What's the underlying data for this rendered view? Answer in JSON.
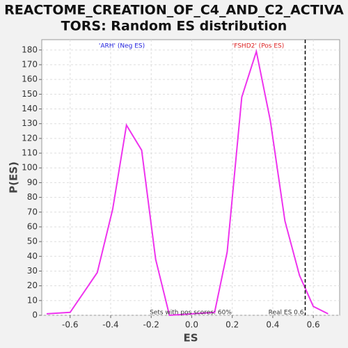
{
  "chart_data": {
    "type": "line",
    "title": [
      "REACTOME_CREATION_OF_C4_AND_C2_ACTIVA",
      "TORS: Random ES distribution"
    ],
    "xlabel": "ES",
    "ylabel": "P(ES)",
    "x": [
      -0.716,
      -0.6,
      -0.466,
      -0.39,
      -0.322,
      -0.247,
      -0.178,
      -0.11,
      0.113,
      0.175,
      0.247,
      0.319,
      0.388,
      0.46,
      0.532,
      0.6,
      0.673
    ],
    "series": [
      {
        "name": "P(ES)",
        "color": "#ee33ee",
        "values": [
          1,
          2,
          29,
          72,
          129,
          112,
          38,
          0,
          2,
          43,
          148,
          179,
          132,
          64,
          27,
          6,
          1
        ]
      }
    ],
    "xlim": [
      -0.74,
      0.73
    ],
    "ylim": [
      0,
      187
    ],
    "xticks": [
      -0.6,
      -0.4,
      -0.2,
      {
        "value": 0,
        "label": "0.0"
      },
      0.2,
      0.4,
      0.6
    ],
    "yticks": [
      0,
      10,
      20,
      30,
      40,
      50,
      60,
      70,
      80,
      90,
      100,
      110,
      120,
      130,
      140,
      150,
      160,
      170,
      180
    ],
    "grid": true,
    "vline": {
      "value": 0.56,
      "label": "Real ES 0.6"
    },
    "annotations": [
      {
        "text": "'ARH' (Neg ES)",
        "color": "#2222dd"
      },
      {
        "text": "'FSHD2' (Pos ES)",
        "color": "#dd2222"
      },
      {
        "text": "Sets with pos scores: 60%",
        "color": "#333333"
      }
    ]
  }
}
